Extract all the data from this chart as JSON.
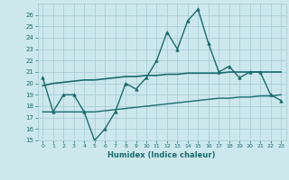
{
  "xlabel": "Humidex (Indice chaleur)",
  "xlim": [
    -0.5,
    23.5
  ],
  "ylim": [
    15,
    27
  ],
  "yticks": [
    15,
    16,
    17,
    18,
    19,
    20,
    21,
    22,
    23,
    24,
    25,
    26
  ],
  "xticks": [
    0,
    1,
    2,
    3,
    4,
    5,
    6,
    7,
    8,
    9,
    10,
    11,
    12,
    13,
    14,
    15,
    16,
    17,
    18,
    19,
    20,
    21,
    22,
    23
  ],
  "background_color": "#cde8ed",
  "grid_color": "#aacdd4",
  "line_color": "#1a6b6b",
  "line1_x": [
    0,
    1,
    2,
    3,
    4,
    5,
    6,
    7,
    8,
    9,
    10,
    11,
    12,
    13,
    14,
    15,
    16,
    17,
    18,
    19,
    20,
    21,
    22,
    23
  ],
  "line1_y": [
    20.5,
    17.5,
    19.0,
    19.0,
    17.5,
    15.0,
    16.0,
    17.5,
    20.0,
    19.5,
    20.5,
    22.0,
    24.5,
    23.0,
    25.5,
    26.5,
    23.5,
    21.0,
    21.5,
    20.5,
    21.0,
    21.0,
    19.0,
    18.5
  ],
  "line2_x": [
    0,
    1,
    2,
    3,
    4,
    5,
    6,
    7,
    8,
    9,
    10,
    11,
    12,
    13,
    14,
    15,
    16,
    17,
    18,
    19,
    20,
    21,
    22,
    23
  ],
  "line2_y": [
    17.5,
    17.5,
    17.5,
    17.5,
    17.5,
    17.5,
    17.6,
    17.7,
    17.8,
    17.9,
    18.0,
    18.1,
    18.2,
    18.3,
    18.4,
    18.5,
    18.6,
    18.7,
    18.7,
    18.8,
    18.8,
    18.9,
    18.9,
    19.0
  ],
  "line3_x": [
    0,
    1,
    2,
    3,
    4,
    5,
    6,
    7,
    8,
    9,
    10,
    11,
    12,
    13,
    14,
    15,
    16,
    17,
    18,
    19,
    20,
    21,
    22,
    23
  ],
  "line3_y": [
    19.8,
    20.0,
    20.1,
    20.2,
    20.3,
    20.3,
    20.4,
    20.5,
    20.6,
    20.6,
    20.7,
    20.7,
    20.8,
    20.8,
    20.9,
    20.9,
    20.9,
    20.9,
    21.0,
    21.0,
    21.0,
    21.0,
    21.0,
    21.0
  ]
}
